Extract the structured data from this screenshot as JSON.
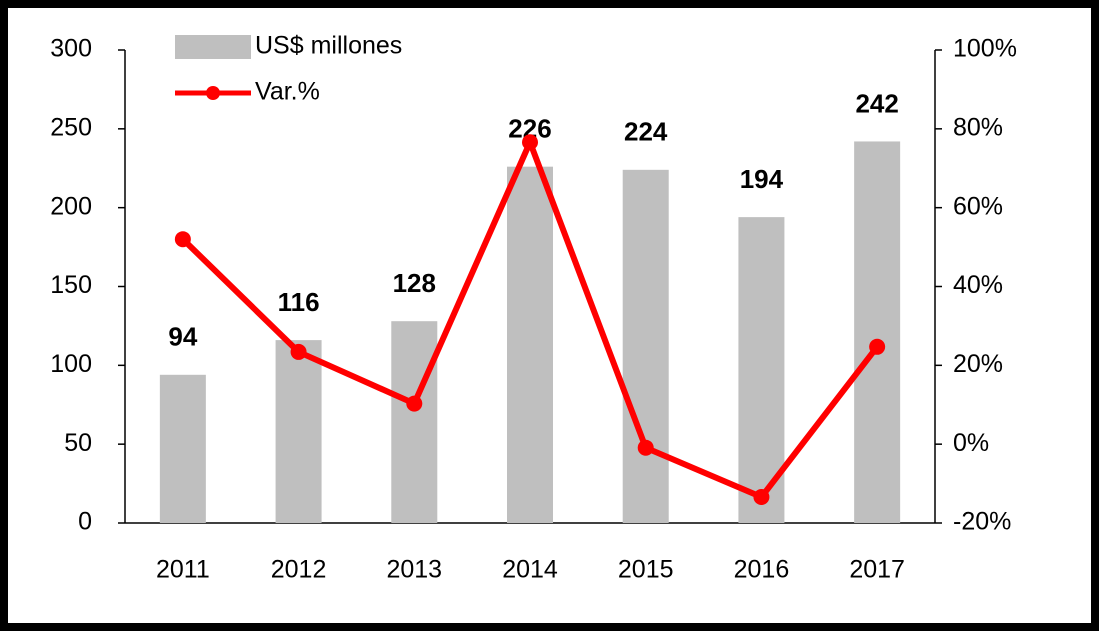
{
  "chart_data": {
    "type": "bar",
    "categories": [
      "2011",
      "2012",
      "2013",
      "2014",
      "2015",
      "2016",
      "2017"
    ],
    "series": [
      {
        "name": "US$ millones",
        "type": "bar",
        "color": "#bfbfbf",
        "values": [
          94,
          116,
          128,
          226,
          224,
          194,
          242
        ]
      },
      {
        "name": "Var.%",
        "type": "line",
        "axis": "y2",
        "color": "#ff0000",
        "values": [
          52,
          23.4,
          10.3,
          76.6,
          -0.9,
          -13.4,
          24.7
        ]
      }
    ],
    "ylim": [
      0,
      300
    ],
    "yticks": [
      0,
      50,
      100,
      150,
      200,
      250,
      300
    ],
    "y2lim": [
      -20,
      100
    ],
    "y2ticks": [
      {
        "value": -20,
        "label": "-20%"
      },
      {
        "value": 0,
        "label": "0%"
      },
      {
        "value": 20,
        "label": "20%"
      },
      {
        "value": 40,
        "label": "40%"
      },
      {
        "value": 60,
        "label": "60%"
      },
      {
        "value": 80,
        "label": "80%"
      },
      {
        "value": 100,
        "label": "100%"
      }
    ],
    "legend": "top-left"
  }
}
